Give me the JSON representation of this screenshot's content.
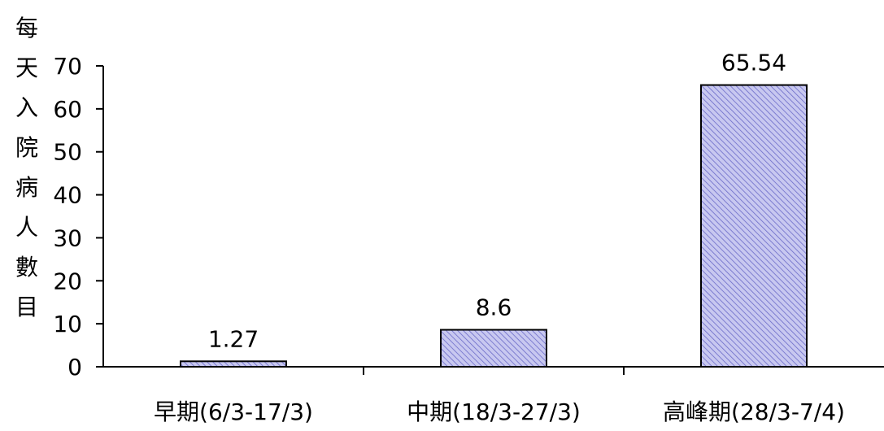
{
  "chart_data": {
    "type": "bar",
    "title": "",
    "xlabel": "",
    "ylabel": "每天入院病人數目",
    "categories": [
      "早期(6/3-17/3)",
      "中期(18/3-27/3)",
      "高峰期(28/3-7/4)"
    ],
    "values": [
      1.27,
      8.6,
      65.54
    ],
    "data_labels": [
      "1.27",
      "8.6",
      "65.54"
    ],
    "ylim": [
      0,
      70
    ],
    "yticks": [
      0,
      10,
      20,
      30,
      40,
      50,
      60,
      70
    ],
    "grid": false,
    "legend": "none",
    "bar_fill": "#c8c8f0",
    "bar_hatch": "#6a6ac8",
    "bar_stroke": "#000000"
  }
}
